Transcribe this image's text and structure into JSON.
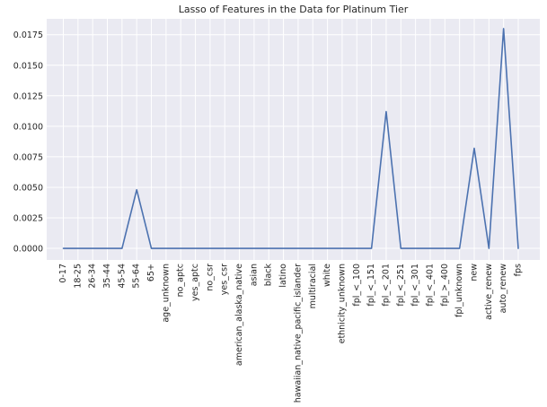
{
  "chart_data": {
    "type": "line",
    "title": "Lasso of Features in the Data for Platinum Tier",
    "xlabel": "",
    "ylabel": "",
    "categories": [
      "0-17",
      "18-25",
      "26-34",
      "35-44",
      "45-54",
      "55-64",
      "65+",
      "age_unknown",
      "no_aptc",
      "yes_aptc",
      "no_csr",
      "yes_csr",
      "american_alaska_native",
      "asian",
      "black",
      "latino",
      "hawaiian_native_pacific_islander",
      "multiracial",
      "white",
      "ethnicity_unknown",
      "fpl_<_100",
      "fpl_<_151",
      "fpl_<_201",
      "fpl_<_251",
      "fpl_<_301",
      "fpl_<_401",
      "fpl_>_400",
      "fpl_unknown",
      "new",
      "active_renew",
      "auto_renew",
      "fps"
    ],
    "series": [
      {
        "values": [
          0,
          0,
          0,
          0,
          0,
          0.0048,
          0,
          0,
          0,
          0,
          0,
          0,
          0,
          0,
          0,
          0,
          0,
          0,
          0,
          0,
          0,
          0,
          0.0112,
          0,
          0,
          0,
          0,
          0,
          0.0082,
          0,
          0.018,
          0
        ]
      }
    ],
    "ylim": [
      -0.00095,
      0.0188
    ],
    "yticks": [
      0.0,
      0.0025,
      0.005,
      0.0075,
      0.01,
      0.0125,
      0.015,
      0.0175
    ],
    "ytick_labels": [
      "0.0000",
      "0.0025",
      "0.0050",
      "0.0075",
      "0.0100",
      "0.0125",
      "0.0150",
      "0.0175"
    ],
    "grid": true,
    "line_color": "#4c72b0",
    "background_color": "#eaeaf2",
    "grid_color": "#ffffff"
  }
}
